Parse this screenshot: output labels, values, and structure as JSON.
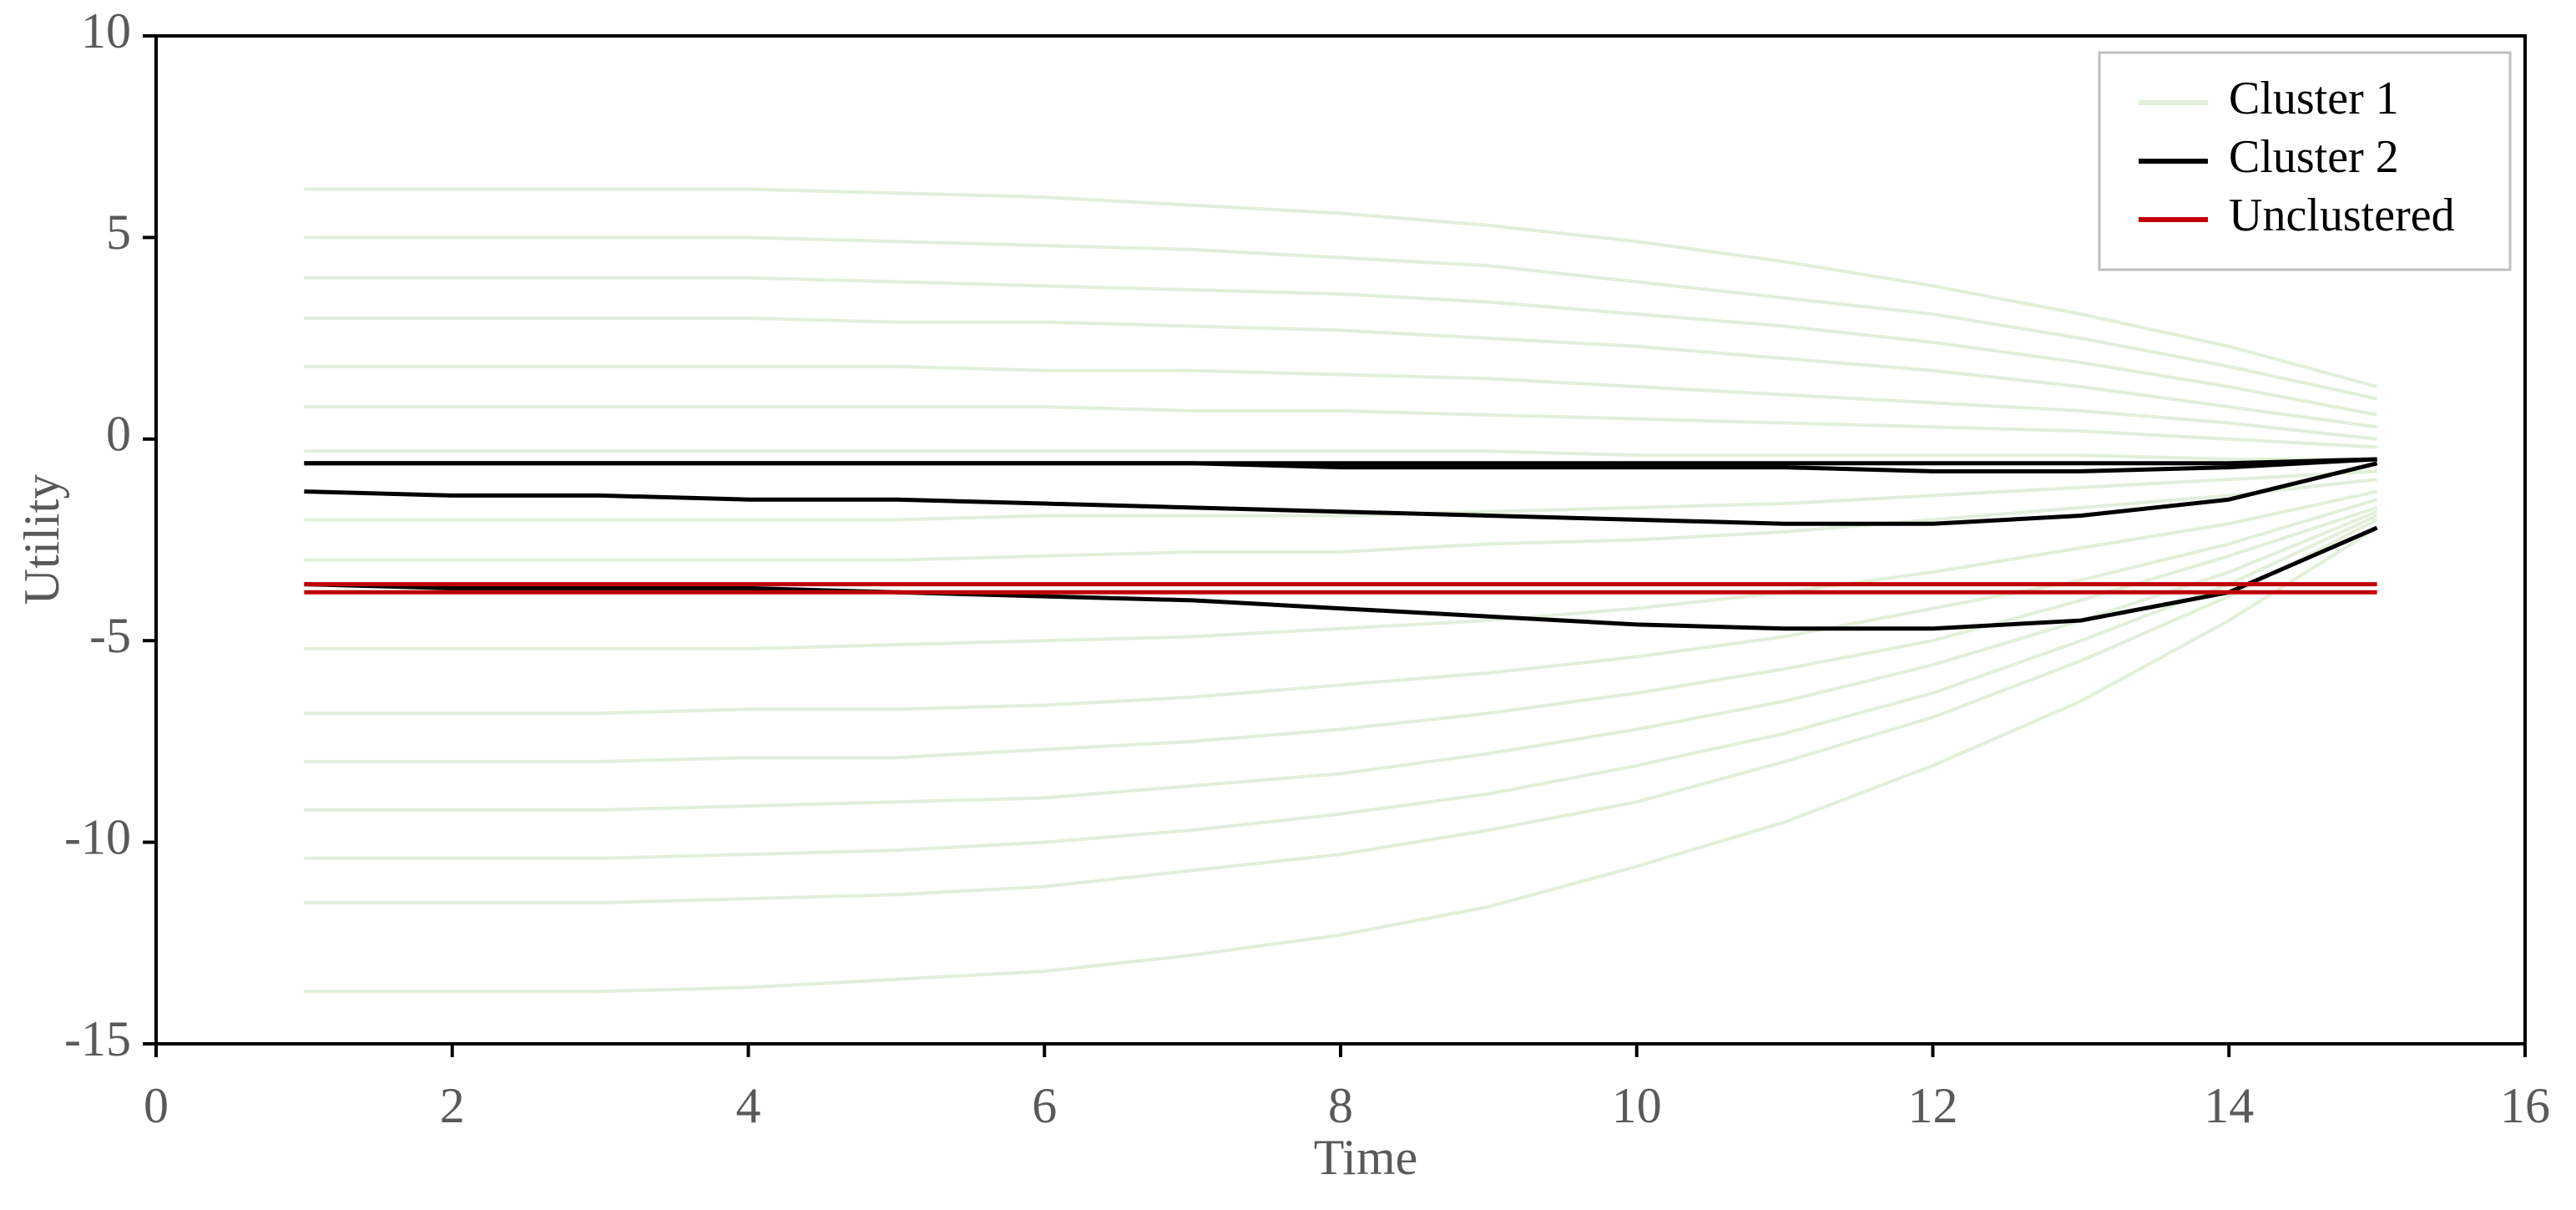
{
  "chart_data": {
    "type": "line",
    "xlabel": "Time",
    "ylabel": "Utility",
    "x": [
      1,
      2,
      3,
      4,
      5,
      6,
      7,
      8,
      9,
      10,
      11,
      12,
      13,
      14,
      15
    ],
    "xlim": [
      0,
      16
    ],
    "xticks": [
      0,
      2,
      4,
      6,
      8,
      10,
      12,
      14,
      16
    ],
    "ylim": [
      -15,
      10
    ],
    "yticks": [
      -15,
      -10,
      -5,
      0,
      5,
      10
    ],
    "legend": "upper right",
    "series": [
      {
        "name": "Cluster 1",
        "color": "#e2efda",
        "values": [
          [
            6.2,
            6.2,
            6.2,
            6.2,
            6.1,
            6.0,
            5.8,
            5.6,
            5.3,
            4.9,
            4.4,
            3.8,
            3.1,
            2.3,
            1.3
          ],
          [
            5.0,
            5.0,
            5.0,
            5.0,
            4.9,
            4.8,
            4.7,
            4.5,
            4.3,
            3.9,
            3.5,
            3.1,
            2.5,
            1.8,
            1.0
          ],
          [
            4.0,
            4.0,
            4.0,
            4.0,
            3.9,
            3.8,
            3.7,
            3.6,
            3.4,
            3.1,
            2.8,
            2.4,
            1.9,
            1.3,
            0.6
          ],
          [
            3.0,
            3.0,
            3.0,
            3.0,
            2.9,
            2.9,
            2.8,
            2.7,
            2.5,
            2.3,
            2.0,
            1.7,
            1.3,
            0.8,
            0.3
          ],
          [
            1.8,
            1.8,
            1.8,
            1.8,
            1.8,
            1.7,
            1.7,
            1.6,
            1.5,
            1.3,
            1.1,
            0.9,
            0.7,
            0.4,
            0
          ],
          [
            0.8,
            0.8,
            0.8,
            0.8,
            0.8,
            0.8,
            0.7,
            0.7,
            0.6,
            0.5,
            0.4,
            0.3,
            0.2,
            0.0,
            -0.2
          ],
          [
            -0.3,
            -0.3,
            -0.3,
            -0.3,
            -0.3,
            -0.3,
            -0.3,
            -0.3,
            -0.3,
            -0.4,
            -0.4,
            -0.4,
            -0.4,
            -0.5,
            -0.5
          ],
          [
            -2.0,
            -2.0,
            -2.0,
            -2.0,
            -2.0,
            -1.9,
            -1.9,
            -1.9,
            -1.8,
            -1.7,
            -1.6,
            -1.4,
            -1.2,
            -1.0,
            -0.8
          ],
          [
            -3.0,
            -3.0,
            -3.0,
            -3.0,
            -3.0,
            -2.9,
            -2.8,
            -2.8,
            -2.6,
            -2.5,
            -2.3,
            -2.0,
            -1.7,
            -1.4,
            -1.0
          ],
          [
            -5.2,
            -5.2,
            -5.2,
            -5.2,
            -5.1,
            -5.0,
            -4.9,
            -4.7,
            -4.5,
            -4.2,
            -3.8,
            -3.3,
            -2.7,
            -2.1,
            -1.3
          ],
          [
            -6.8,
            -6.8,
            -6.8,
            -6.7,
            -6.7,
            -6.6,
            -6.4,
            -6.1,
            -5.8,
            -5.4,
            -4.9,
            -4.2,
            -3.5,
            -2.6,
            -1.5
          ],
          [
            -8.0,
            -8.0,
            -8.0,
            -7.9,
            -7.9,
            -7.7,
            -7.5,
            -7.2,
            -6.8,
            -6.3,
            -5.7,
            -5.0,
            -4.0,
            -2.9,
            -1.7
          ],
          [
            -9.2,
            -9.2,
            -9.2,
            -9.1,
            -9.0,
            -8.9,
            -8.6,
            -8.3,
            -7.8,
            -7.2,
            -6.5,
            -5.6,
            -4.5,
            -3.3,
            -1.8
          ],
          [
            -10.4,
            -10.4,
            -10.4,
            -10.3,
            -10.2,
            -10.0,
            -9.7,
            -9.3,
            -8.8,
            -8.1,
            -7.3,
            -6.3,
            -5.0,
            -3.6,
            -1.9
          ],
          [
            -11.5,
            -11.5,
            -11.5,
            -11.4,
            -11.3,
            -11.1,
            -10.7,
            -10.3,
            -9.7,
            -9.0,
            -8.0,
            -6.9,
            -5.5,
            -3.9,
            -2.0
          ],
          [
            -13.7,
            -13.7,
            -13.7,
            -13.6,
            -13.4,
            -13.2,
            -12.8,
            -12.3,
            -11.6,
            -10.6,
            -9.5,
            -8.1,
            -6.5,
            -4.5,
            -2.2
          ]
        ]
      },
      {
        "name": "Cluster 2",
        "color": "#000000",
        "values": [
          [
            -0.6,
            -0.6,
            -0.6,
            -0.6,
            -0.6,
            -0.6,
            -0.6,
            -0.6,
            -0.6,
            -0.6,
            -0.6,
            -0.6,
            -0.6,
            -0.6,
            -0.5
          ],
          [
            -0.6,
            -0.6,
            -0.6,
            -0.6,
            -0.6,
            -0.6,
            -0.6,
            -0.7,
            -0.7,
            -0.7,
            -0.7,
            -0.8,
            -0.8,
            -0.7,
            -0.5
          ],
          [
            -1.3,
            -1.4,
            -1.4,
            -1.5,
            -1.5,
            -1.6,
            -1.7,
            -1.8,
            -1.9,
            -2.0,
            -2.1,
            -2.1,
            -1.9,
            -1.5,
            -0.6
          ],
          [
            -3.6,
            -3.7,
            -3.7,
            -3.7,
            -3.8,
            -3.9,
            -4.0,
            -4.2,
            -4.4,
            -4.6,
            -4.7,
            -4.7,
            -4.5,
            -3.8,
            -2.2
          ]
        ]
      },
      {
        "name": "Unclustered",
        "color": "#c00000",
        "values": [
          [
            -3.6,
            -3.6,
            -3.6,
            -3.6,
            -3.6,
            -3.6,
            -3.6,
            -3.6,
            -3.6,
            -3.6,
            -3.6,
            -3.6,
            -3.6,
            -3.6,
            -3.6
          ],
          [
            -3.8,
            -3.8,
            -3.8,
            -3.8,
            -3.8,
            -3.8,
            -3.8,
            -3.8,
            -3.8,
            -3.8,
            -3.8,
            -3.8,
            -3.8,
            -3.8,
            -3.8
          ]
        ]
      }
    ]
  }
}
